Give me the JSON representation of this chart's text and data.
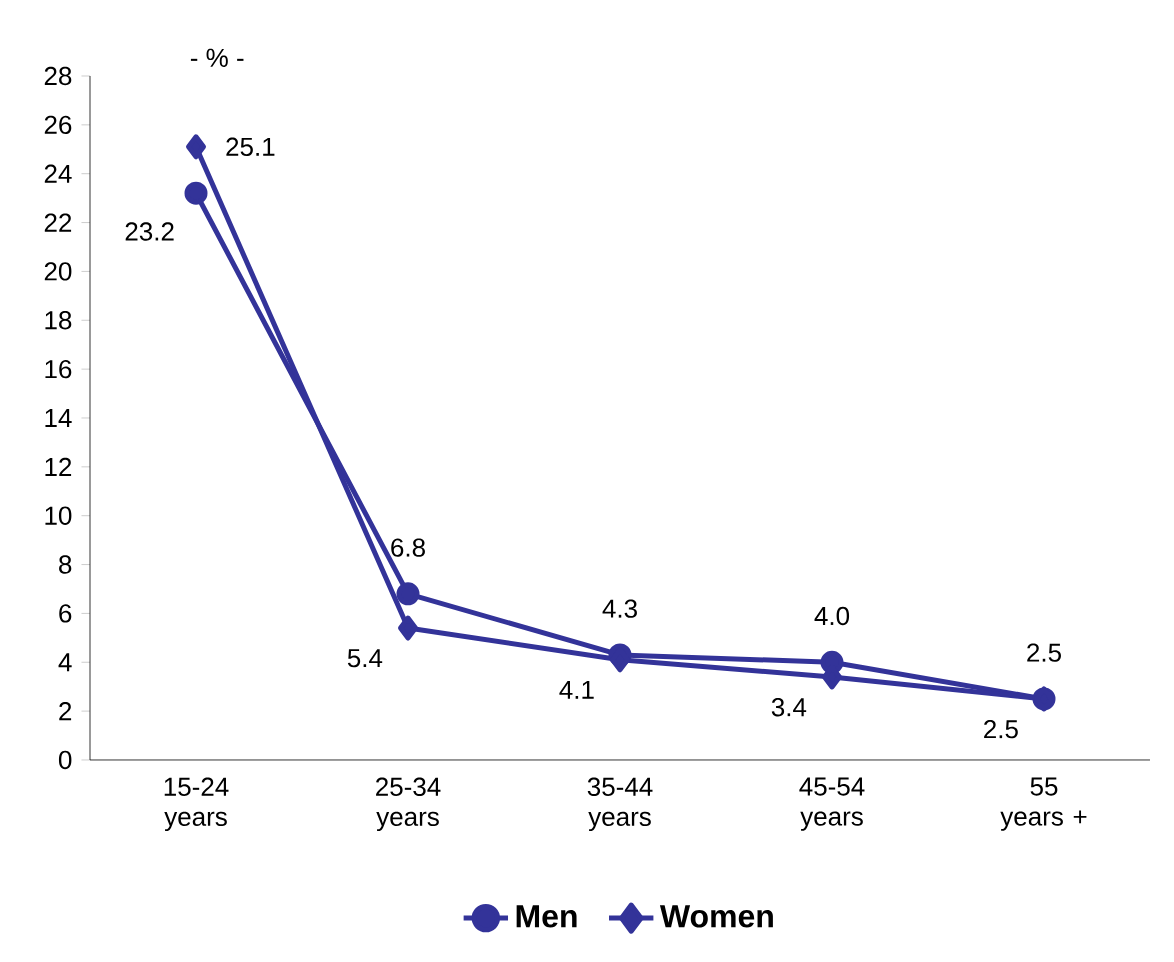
{
  "chart_data": {
    "type": "line",
    "ylabel": "- % -",
    "categories": [
      "15-24 years",
      "25-34 years",
      "35-44 years",
      "45-54 years",
      "55 years +"
    ],
    "series": [
      {
        "name": "Men",
        "color": "#333399",
        "marker": "circle",
        "values": [
          23.2,
          6.8,
          4.3,
          4.0,
          2.5
        ],
        "value_labels": [
          "23.2",
          "6.8",
          "4.3",
          "4.0",
          "2.5"
        ]
      },
      {
        "name": "Women",
        "color": "#333399",
        "marker": "diamond",
        "values": [
          25.1,
          5.4,
          4.1,
          3.4,
          2.5
        ],
        "value_labels": [
          "25.1",
          "5.4",
          "4.1",
          "3.4",
          "2.5"
        ]
      }
    ],
    "ylim": [
      0,
      28
    ],
    "yticks": [
      0,
      2,
      4,
      6,
      8,
      10,
      12,
      14,
      16,
      18,
      20,
      22,
      24,
      26,
      28
    ],
    "grid": false,
    "legend": "bottom",
    "line_style": "solid"
  }
}
